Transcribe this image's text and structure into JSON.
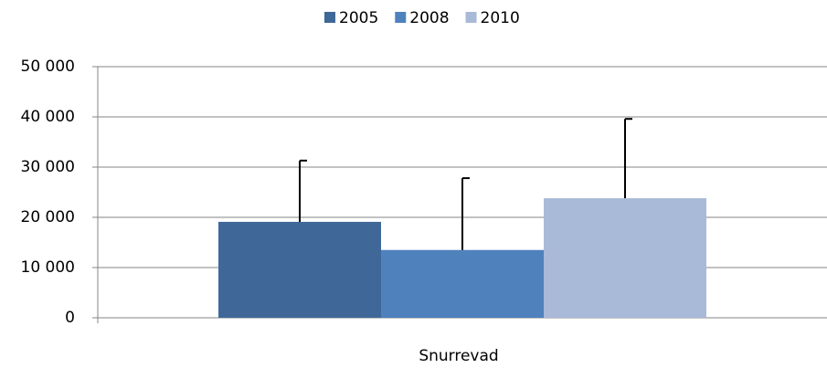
{
  "chart_data": {
    "type": "bar",
    "categories": [
      "Snurrevad"
    ],
    "series": [
      {
        "name": "2005",
        "color": "#3f6898",
        "values": [
          19100
        ],
        "errors": [
          12200
        ]
      },
      {
        "name": "2008",
        "color": "#4f81bd",
        "values": [
          13500
        ],
        "errors": [
          14300
        ]
      },
      {
        "name": "2010",
        "color": "#a9b9d8",
        "values": [
          23800
        ],
        "errors": [
          15800
        ]
      }
    ],
    "ylim": [
      0,
      50000
    ],
    "yticks": [
      0,
      {
        "value": 10000,
        "label": "10 000"
      },
      {
        "value": 20000,
        "label": "20 000"
      },
      {
        "value": 30000,
        "label": "30 000"
      },
      {
        "value": 40000,
        "label": "40 000"
      },
      {
        "value": 50000,
        "label": "50 000"
      }
    ],
    "grid": true,
    "legend": "top"
  }
}
